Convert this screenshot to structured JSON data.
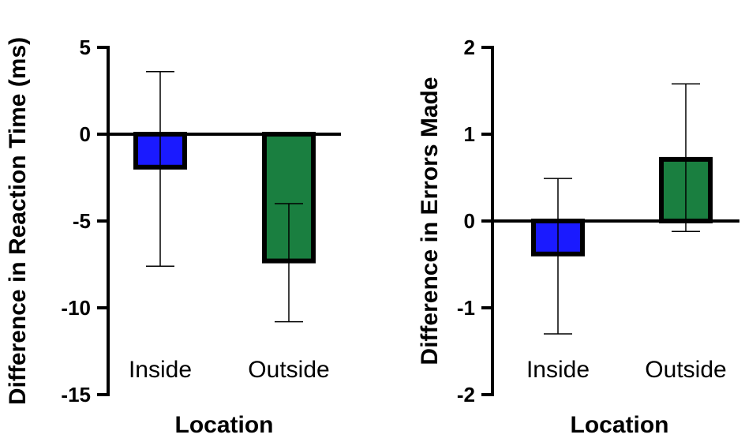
{
  "chart_data": [
    {
      "type": "bar",
      "categories": [
        "Inside",
        "Outside"
      ],
      "values": [
        -1.9,
        -7.3
      ],
      "error_low": [
        -7.6,
        -10.8
      ],
      "error_high": [
        3.6,
        -4.0
      ],
      "xlabel": "Location",
      "ylabel": "Difference in Reaction Time (ms)",
      "ylim": [
        -15,
        5
      ],
      "yticks": [
        5,
        0,
        -5,
        -10,
        -15
      ],
      "ytick_labels": [
        "5",
        "0",
        "-5",
        "-10",
        "-15"
      ],
      "grid": false,
      "colors": [
        "#1a1aff",
        "#1a7f40"
      ]
    },
    {
      "type": "bar",
      "categories": [
        "Inside",
        "Outside"
      ],
      "values": [
        -0.38,
        0.71
      ],
      "error_low": [
        -1.3,
        -0.12
      ],
      "error_high": [
        0.49,
        1.58
      ],
      "xlabel": "Location",
      "ylabel": "Difference in Errors Made",
      "ylim": [
        -2,
        2
      ],
      "yticks": [
        2,
        1,
        0,
        -1,
        -2
      ],
      "ytick_labels": [
        "2",
        "1",
        "0",
        "-1",
        "-2"
      ],
      "grid": false,
      "colors": [
        "#1a1aff",
        "#1a7f40"
      ]
    }
  ]
}
